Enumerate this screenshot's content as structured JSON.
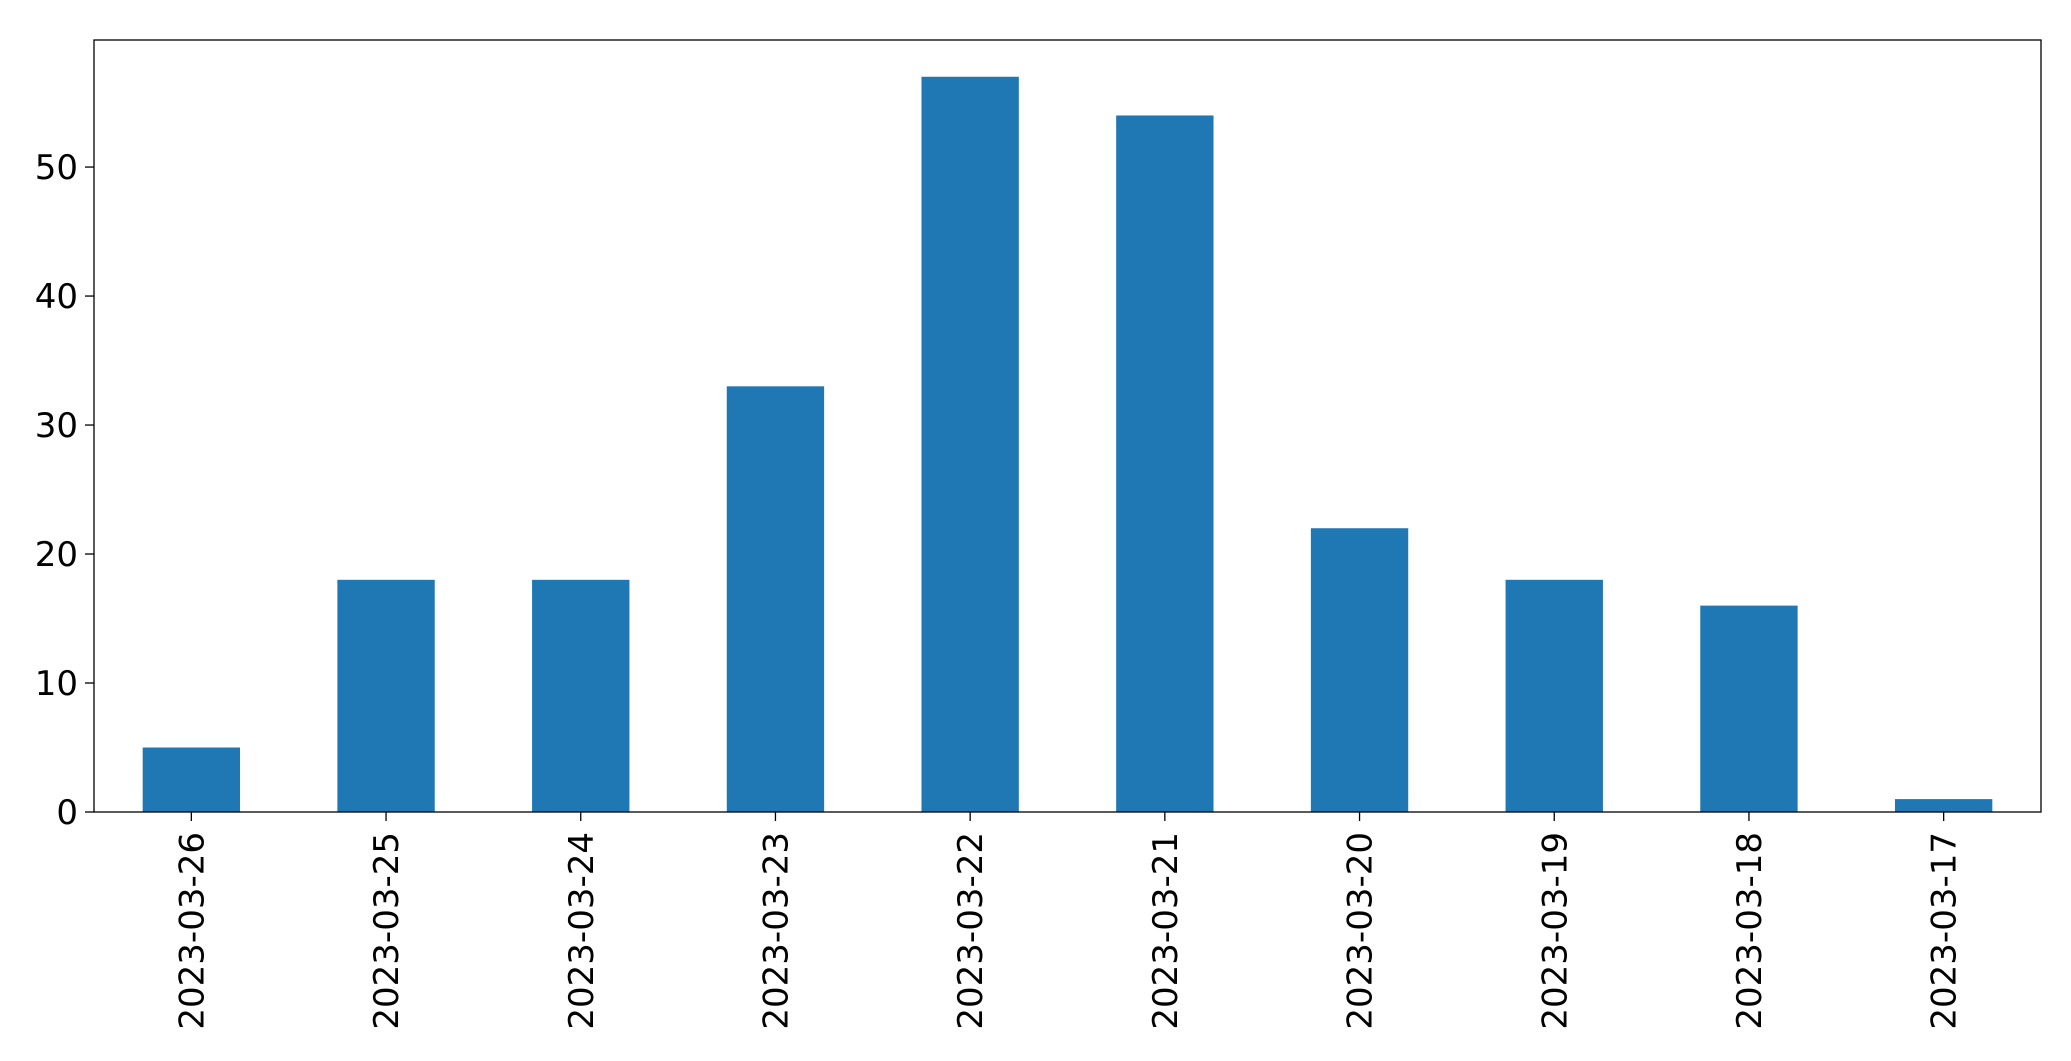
{
  "chart_data": {
    "type": "bar",
    "categories": [
      "2023-03-26",
      "2023-03-25",
      "2023-03-24",
      "2023-03-23",
      "2023-03-22",
      "2023-03-21",
      "2023-03-20",
      "2023-03-19",
      "2023-03-18",
      "2023-03-17"
    ],
    "values": [
      5,
      18,
      18,
      33,
      57,
      54,
      22,
      18,
      16,
      1
    ],
    "color": "#1f77b4",
    "ylim": [
      0,
      59.85
    ],
    "yticks": [
      0,
      10,
      20,
      30,
      40,
      50
    ],
    "grid": false
  }
}
